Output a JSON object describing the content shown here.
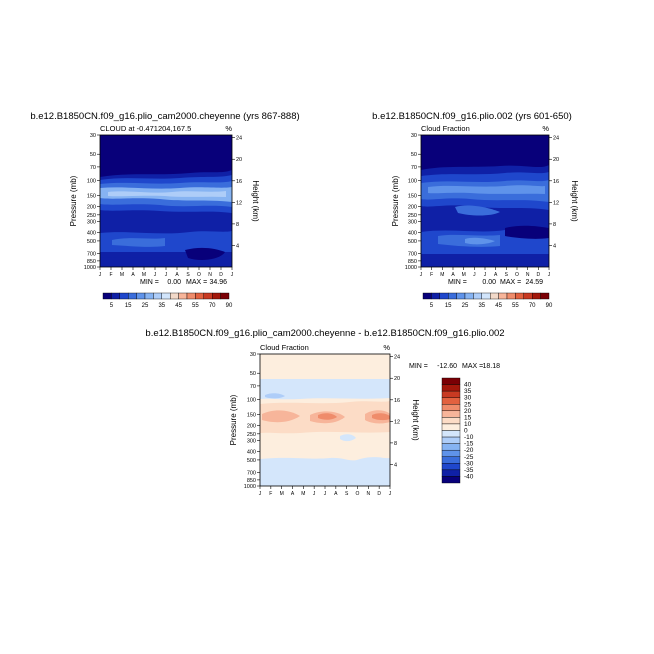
{
  "chart_data": [
    {
      "type": "heatmap",
      "title": "b.e12.B1850CN.f09_g16.plio_cam2000.cheyenne (yrs 867-888)",
      "subtitle_left": "CLOUD at -0.471204,167.5",
      "subtitle_right": "%",
      "xlabel": "",
      "ylabel": "Pressure (mb)",
      "ylabel_right": "Height (km)",
      "x_ticks": [
        "J",
        "F",
        "M",
        "A",
        "M",
        "J",
        "J",
        "A",
        "S",
        "O",
        "N",
        "D",
        "J"
      ],
      "y_ticks": [
        30,
        50,
        70,
        100,
        150,
        200,
        250,
        300,
        400,
        500,
        700,
        850,
        1000
      ],
      "y_ticks_right": [
        24,
        20,
        16,
        12,
        8,
        4
      ],
      "min_label": "MIN =",
      "min_value": "0.00",
      "max_label": "MAX =",
      "max_value": "34.96",
      "colorbar_levels": [
        5,
        15,
        25,
        35,
        45,
        55,
        70,
        90
      ]
    },
    {
      "type": "heatmap",
      "title": "b.e12.B1850CN.f09_g16.plio.002 (yrs 601-650)",
      "subtitle_left": "Cloud Fraction",
      "subtitle_right": "%",
      "xlabel": "",
      "ylabel": "Pressure (mb)",
      "ylabel_right": "Height (km)",
      "x_ticks": [
        "J",
        "F",
        "M",
        "A",
        "M",
        "J",
        "J",
        "A",
        "S",
        "O",
        "N",
        "D",
        "J"
      ],
      "y_ticks": [
        30,
        50,
        70,
        100,
        150,
        200,
        250,
        300,
        400,
        500,
        700,
        850,
        1000
      ],
      "y_ticks_right": [
        24,
        20,
        16,
        12,
        8,
        4
      ],
      "min_label": "MIN =",
      "min_value": "0.00",
      "max_label": "MAX =",
      "max_value": "24.59",
      "colorbar_levels": [
        5,
        15,
        25,
        35,
        45,
        55,
        70,
        90
      ]
    },
    {
      "type": "heatmap",
      "title": "b.e12.B1850CN.f09_g16.plio_cam2000.cheyenne - b.e12.B1850CN.f09_g16.plio.002",
      "subtitle_left": "Cloud Fraction",
      "subtitle_right": "%",
      "xlabel": "",
      "ylabel": "Pressure (mb)",
      "ylabel_right": "Height (km)",
      "x_ticks": [
        "J",
        "F",
        "M",
        "A",
        "M",
        "J",
        "J",
        "A",
        "S",
        "O",
        "N",
        "D",
        "J"
      ],
      "y_ticks": [
        30,
        50,
        70,
        100,
        150,
        200,
        250,
        300,
        400,
        500,
        700,
        850,
        1000
      ],
      "y_ticks_right": [
        24,
        20,
        16,
        12,
        8,
        4
      ],
      "min_label": "MIN =",
      "min_value": "-12.60",
      "max_label": "MAX =",
      "max_value": "18.18",
      "colorbar_levels": [
        40,
        35,
        30,
        25,
        20,
        15,
        10,
        0,
        -10,
        -15,
        -20,
        -25,
        -30,
        -35,
        -40
      ]
    }
  ],
  "colors": {
    "seq": [
      "#08007a",
      "#0f20a6",
      "#1f47cc",
      "#3a6ddb",
      "#5f93ea",
      "#86b3f2",
      "#aecdf8",
      "#d2e5fb",
      "#f2d9c9",
      "#f7b59a",
      "#ef8c6b",
      "#e2613f",
      "#c83a22",
      "#a3170b",
      "#7a0005"
    ],
    "div": [
      "#7a0005",
      "#a3170b",
      "#c83a22",
      "#e2613f",
      "#ef8c6b",
      "#f7b59a",
      "#fcdcc6",
      "#fdeede",
      "#d4e6fb",
      "#aecdf8",
      "#86b3f2",
      "#5f93ea",
      "#3a6ddb",
      "#1f47cc",
      "#0f20a6",
      "#08007a"
    ]
  }
}
